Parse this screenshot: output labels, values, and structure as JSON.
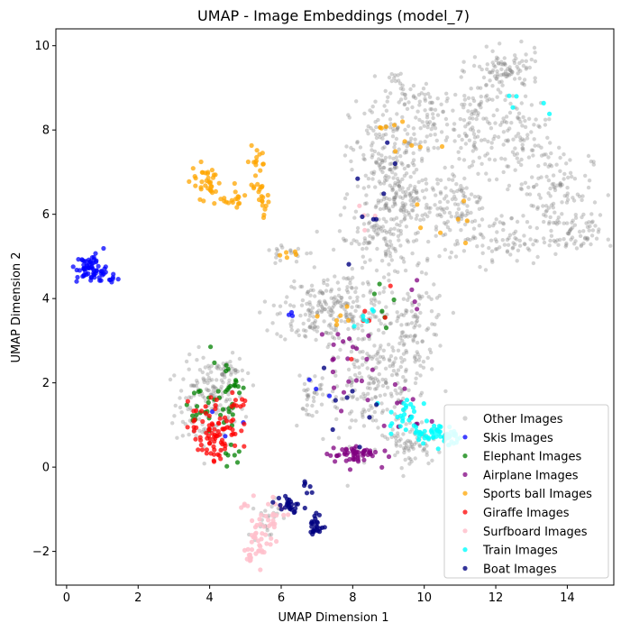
{
  "chart_data": {
    "type": "scatter",
    "title": "UMAP - Image Embeddings (model_7)",
    "xlabel": "UMAP Dimension 1",
    "ylabel": "UMAP Dimension 2",
    "xlim": [
      -0.3,
      15.3
    ],
    "ylim": [
      -2.8,
      10.4
    ],
    "xticks": [
      0,
      2,
      4,
      6,
      8,
      10,
      12,
      14
    ],
    "yticks": [
      -2,
      0,
      2,
      4,
      6,
      8,
      10
    ],
    "grid": false,
    "legend_position": "lower-right",
    "series": [
      {
        "name": "Other Images",
        "color": "#808080",
        "alpha": 0.35,
        "clusters": [
          {
            "cx": 4.0,
            "cy": 1.5,
            "rx": 0.8,
            "ry": 0.9,
            "n": 160
          },
          {
            "cx": 4.4,
            "cy": 2.3,
            "rx": 0.5,
            "ry": 0.3,
            "n": 40
          },
          {
            "cx": 8.6,
            "cy": 2.0,
            "rx": 1.2,
            "ry": 1.2,
            "n": 220
          },
          {
            "cx": 9.8,
            "cy": 3.3,
            "rx": 0.7,
            "ry": 0.9,
            "n": 90
          },
          {
            "cx": 7.6,
            "cy": 3.8,
            "rx": 1.3,
            "ry": 0.7,
            "n": 160
          },
          {
            "cx": 6.8,
            "cy": 3.6,
            "rx": 0.8,
            "ry": 0.5,
            "n": 60
          },
          {
            "cx": 9.0,
            "cy": 7.3,
            "rx": 0.9,
            "ry": 1.2,
            "n": 190
          },
          {
            "cx": 8.8,
            "cy": 5.4,
            "rx": 1.0,
            "ry": 0.8,
            "n": 130
          },
          {
            "cx": 10.2,
            "cy": 8.3,
            "rx": 0.6,
            "ry": 0.6,
            "n": 70
          },
          {
            "cx": 11.5,
            "cy": 8.0,
            "rx": 0.6,
            "ry": 1.2,
            "n": 110
          },
          {
            "cx": 12.3,
            "cy": 9.4,
            "rx": 0.8,
            "ry": 0.4,
            "n": 90
          },
          {
            "cx": 12.7,
            "cy": 7.8,
            "rx": 0.6,
            "ry": 0.9,
            "n": 80
          },
          {
            "cx": 13.6,
            "cy": 6.6,
            "rx": 0.9,
            "ry": 0.9,
            "n": 110
          },
          {
            "cx": 14.2,
            "cy": 5.5,
            "rx": 0.6,
            "ry": 0.4,
            "n": 60
          },
          {
            "cx": 12.0,
            "cy": 5.4,
            "rx": 1.3,
            "ry": 0.5,
            "n": 90
          },
          {
            "cx": 10.8,
            "cy": 6.3,
            "rx": 0.7,
            "ry": 0.8,
            "n": 90
          },
          {
            "cx": 9.4,
            "cy": 6.3,
            "rx": 0.7,
            "ry": 0.6,
            "n": 80
          },
          {
            "cx": 6.2,
            "cy": 5.1,
            "rx": 0.6,
            "ry": 0.2,
            "n": 20
          },
          {
            "cx": 9.6,
            "cy": 0.6,
            "rx": 0.5,
            "ry": 0.5,
            "n": 70
          },
          {
            "cx": 6.8,
            "cy": 1.7,
            "rx": 0.4,
            "ry": 0.5,
            "n": 30
          },
          {
            "cx": 5.6,
            "cy": -1.2,
            "rx": 0.3,
            "ry": 0.5,
            "n": 25
          },
          {
            "cx": 9.2,
            "cy": 9.0,
            "rx": 0.4,
            "ry": 0.3,
            "n": 25
          }
        ]
      },
      {
        "name": "Skis Images",
        "color": "#0000ff",
        "alpha": 0.75,
        "clusters": [
          {
            "cx": 0.7,
            "cy": 4.7,
            "rx": 0.35,
            "ry": 0.3,
            "n": 65
          },
          {
            "cx": 1.2,
            "cy": 4.5,
            "rx": 0.2,
            "ry": 0.1,
            "n": 8
          },
          {
            "cx": 6.3,
            "cy": 3.6,
            "rx": 0.3,
            "ry": 0.2,
            "n": 3
          },
          {
            "cx": 6.9,
            "cy": 1.8,
            "rx": 0.3,
            "ry": 0.3,
            "n": 3
          },
          {
            "cx": 4.5,
            "cy": 1.0,
            "rx": 0.4,
            "ry": 0.4,
            "n": 3
          }
        ]
      },
      {
        "name": "Elephant Images",
        "color": "#008000",
        "alpha": 0.75,
        "clusters": [
          {
            "cx": 3.9,
            "cy": 1.4,
            "rx": 0.6,
            "ry": 0.4,
            "n": 25
          },
          {
            "cx": 4.5,
            "cy": 2.0,
            "rx": 0.4,
            "ry": 0.4,
            "n": 18
          },
          {
            "cx": 4.7,
            "cy": 0.3,
            "rx": 0.2,
            "ry": 0.5,
            "n": 8
          },
          {
            "cx": 9.0,
            "cy": 3.8,
            "rx": 0.4,
            "ry": 0.5,
            "n": 6
          }
        ]
      },
      {
        "name": "Airplane Images",
        "color": "#800080",
        "alpha": 0.75,
        "clusters": [
          {
            "cx": 8.0,
            "cy": 0.3,
            "rx": 0.6,
            "ry": 0.2,
            "n": 55
          },
          {
            "cx": 7.6,
            "cy": 2.5,
            "rx": 0.8,
            "ry": 0.9,
            "n": 22
          },
          {
            "cx": 9.6,
            "cy": 1.3,
            "rx": 0.6,
            "ry": 0.6,
            "n": 10
          },
          {
            "cx": 9.8,
            "cy": 4.1,
            "rx": 0.3,
            "ry": 0.5,
            "n": 4
          }
        ]
      },
      {
        "name": "Sports ball Images",
        "color": "#ffa500",
        "alpha": 0.75,
        "clusters": [
          {
            "cx": 3.9,
            "cy": 6.8,
            "rx": 0.35,
            "ry": 0.35,
            "n": 35
          },
          {
            "cx": 4.6,
            "cy": 6.3,
            "rx": 0.45,
            "ry": 0.2,
            "n": 18
          },
          {
            "cx": 5.3,
            "cy": 7.0,
            "rx": 0.2,
            "ry": 0.6,
            "n": 25
          },
          {
            "cx": 5.5,
            "cy": 6.1,
            "rx": 0.2,
            "ry": 0.3,
            "n": 10
          },
          {
            "cx": 9.5,
            "cy": 8.0,
            "rx": 0.7,
            "ry": 0.8,
            "n": 10
          },
          {
            "cx": 10.8,
            "cy": 5.6,
            "rx": 0.8,
            "ry": 0.5,
            "n": 7
          },
          {
            "cx": 6.2,
            "cy": 5.1,
            "rx": 0.3,
            "ry": 0.3,
            "n": 5
          },
          {
            "cx": 7.5,
            "cy": 3.6,
            "rx": 0.5,
            "ry": 0.4,
            "n": 6
          }
        ]
      },
      {
        "name": "Giraffe Images",
        "color": "#ff0000",
        "alpha": 0.75,
        "clusters": [
          {
            "cx": 4.1,
            "cy": 1.0,
            "rx": 0.6,
            "ry": 0.5,
            "n": 60
          },
          {
            "cx": 4.2,
            "cy": 0.5,
            "rx": 0.4,
            "ry": 0.3,
            "n": 25
          },
          {
            "cx": 4.8,
            "cy": 1.5,
            "rx": 0.2,
            "ry": 0.3,
            "n": 8
          },
          {
            "cx": 8.6,
            "cy": 3.5,
            "rx": 0.7,
            "ry": 0.8,
            "n": 6
          }
        ]
      },
      {
        "name": "Surfboard Images",
        "color": "#ffc0cb",
        "alpha": 0.85,
        "clusters": [
          {
            "cx": 5.4,
            "cy": -1.7,
            "rx": 0.3,
            "ry": 0.4,
            "n": 30
          },
          {
            "cx": 5.9,
            "cy": -1.1,
            "rx": 0.4,
            "ry": 0.3,
            "n": 20
          },
          {
            "cx": 5.1,
            "cy": -2.1,
            "rx": 0.1,
            "ry": 0.15,
            "n": 10
          },
          {
            "cx": 5.1,
            "cy": -0.9,
            "rx": 0.2,
            "ry": 0.2,
            "n": 5
          },
          {
            "cx": 8.3,
            "cy": 5.8,
            "rx": 0.4,
            "ry": 0.5,
            "n": 4
          }
        ]
      },
      {
        "name": "Train Images",
        "color": "#00ffff",
        "alpha": 0.8,
        "clusters": [
          {
            "cx": 10.2,
            "cy": 0.8,
            "rx": 0.5,
            "ry": 0.2,
            "n": 45
          },
          {
            "cx": 9.4,
            "cy": 1.3,
            "rx": 0.4,
            "ry": 0.4,
            "n": 25
          },
          {
            "cx": 10.7,
            "cy": 0.7,
            "rx": 0.2,
            "ry": 0.15,
            "n": 20
          },
          {
            "cx": 8.3,
            "cy": 3.6,
            "rx": 0.3,
            "ry": 0.4,
            "n": 6
          },
          {
            "cx": 12.8,
            "cy": 8.5,
            "rx": 0.8,
            "ry": 1.0,
            "n": 5
          }
        ]
      },
      {
        "name": "Boat Images",
        "color": "#000080",
        "alpha": 0.8,
        "clusters": [
          {
            "cx": 6.2,
            "cy": -0.9,
            "rx": 0.3,
            "ry": 0.2,
            "n": 25
          },
          {
            "cx": 7.0,
            "cy": -1.4,
            "rx": 0.15,
            "ry": 0.25,
            "n": 25
          },
          {
            "cx": 6.7,
            "cy": -0.5,
            "rx": 0.2,
            "ry": 0.3,
            "n": 6
          },
          {
            "cx": 8.5,
            "cy": 6.8,
            "rx": 0.9,
            "ry": 1.4,
            "n": 8
          },
          {
            "cx": 7.9,
            "cy": 1.6,
            "rx": 0.8,
            "ry": 0.6,
            "n": 8
          }
        ]
      }
    ]
  }
}
